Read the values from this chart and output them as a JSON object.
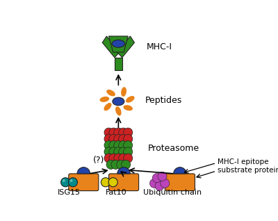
{
  "bg_color": "#ffffff",
  "colors": {
    "orange": "#E8821A",
    "blue": "#2244AA",
    "green": "#2E8B20",
    "red": "#CC2222",
    "teal": "#008B8B",
    "yellow": "#DDCC00",
    "purple": "#BB44BB",
    "dark": "#222222"
  },
  "labels": {
    "mhc1": "MHC-I",
    "peptides": "Peptides",
    "proteasome": "Proteasome",
    "isg15": "ISG15",
    "fat10": "Fat10",
    "ubiquitin": "Ubiquitin chain",
    "epitope": "MHC-I epitope",
    "substrate": "substrate protein",
    "question": "(?)"
  },
  "figsize": [
    4.0,
    3.18
  ],
  "dpi": 100
}
